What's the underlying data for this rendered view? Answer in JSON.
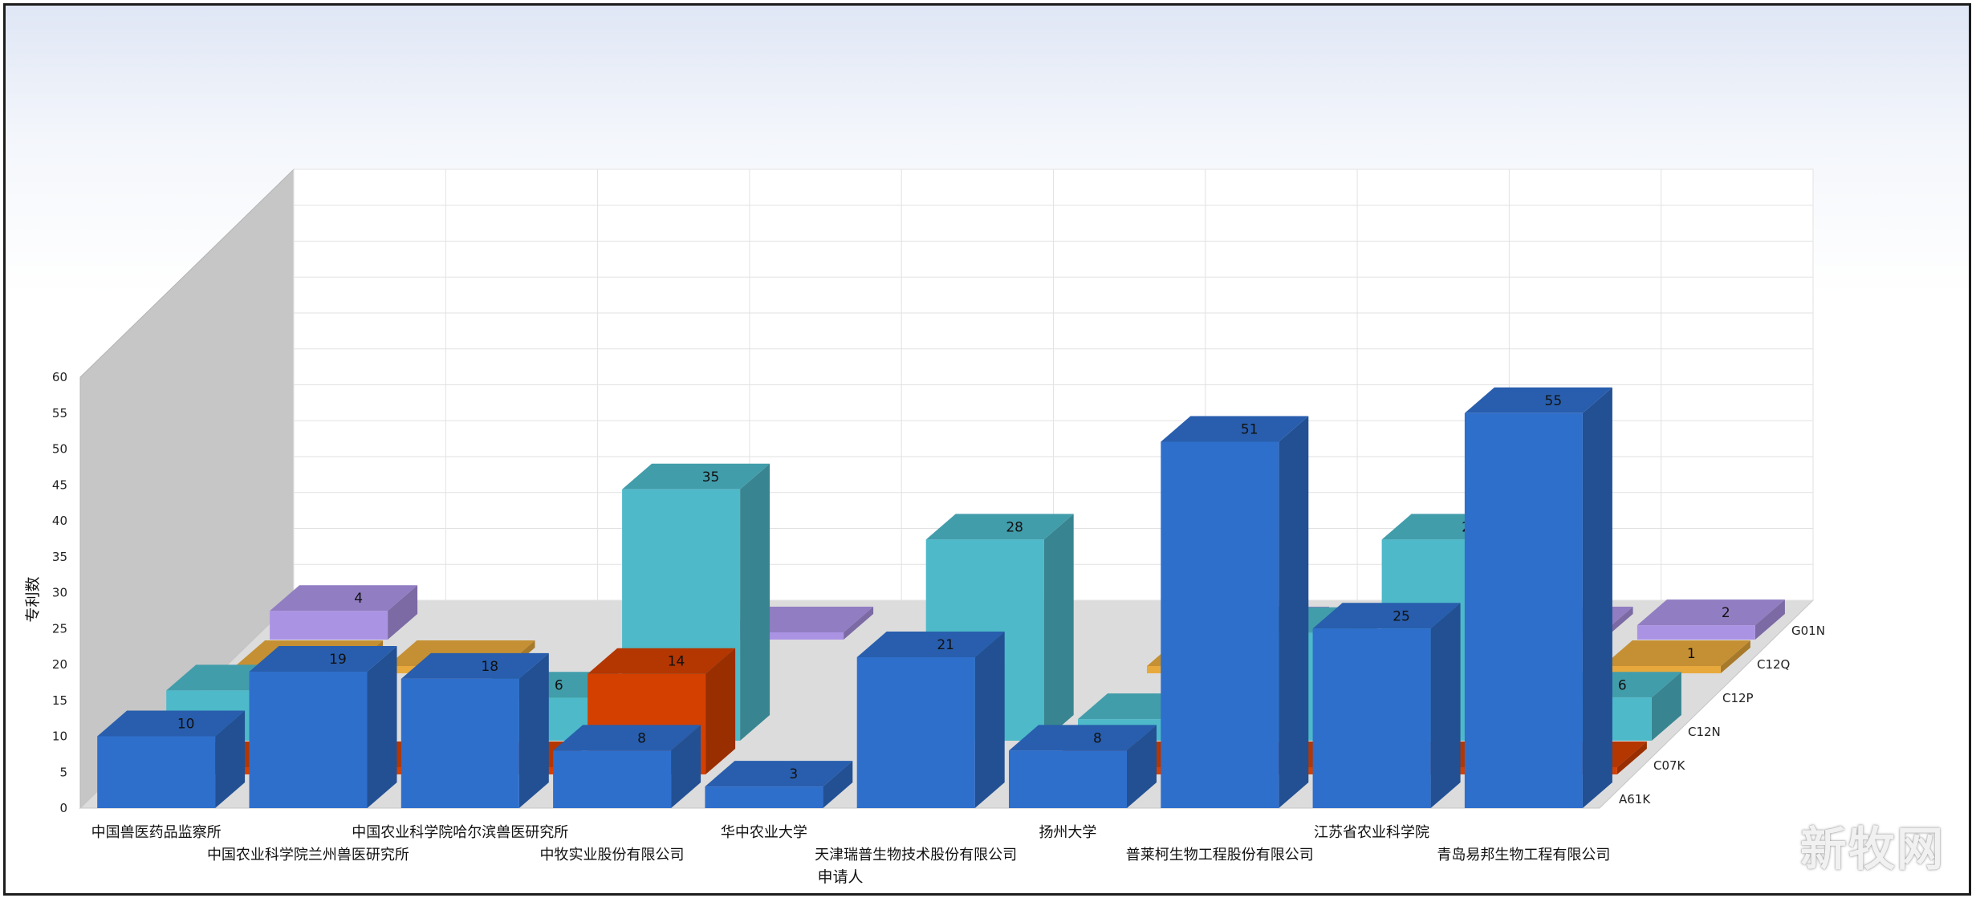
{
  "chart_data": {
    "type": "bar",
    "ylabel": "专利数",
    "xlabel": "申请人",
    "ylim": [
      0,
      60
    ],
    "yticks": [
      0,
      5,
      10,
      15,
      20,
      25,
      30,
      35,
      40,
      45,
      50,
      55,
      60
    ],
    "grid": true,
    "categories": [
      "中国兽医药品监察所",
      "中国农业科学院兰州兽医研究所",
      "中国农业科学院哈尔滨兽医研究所",
      "中牧实业股份有限公司",
      "华中农业大学",
      "天津瑞普生物技术股份有限公司",
      "扬州大学",
      "普莱柯生物工程股份有限公司",
      "江苏省农业科学院",
      "青岛易邦生物工程有限公司"
    ],
    "series": [
      {
        "name": "A61K",
        "color": "#2f6fcc",
        "values": [
          10,
          19,
          18,
          8,
          3,
          21,
          8,
          51,
          25,
          55
        ],
        "labels": [
          "10",
          "19",
          "18",
          "8",
          "3",
          "21",
          "8",
          "51",
          "25",
          "55"
        ]
      },
      {
        "name": "C07K",
        "color": "#d44000",
        "values": [
          1,
          1,
          1,
          14,
          0,
          0,
          1,
          1,
          1,
          1
        ],
        "labels": [
          "",
          "",
          "",
          "14",
          "",
          "",
          "",
          "",
          "",
          ""
        ]
      },
      {
        "name": "C12N",
        "color": "#4eb9c9",
        "values": [
          7,
          0,
          6,
          35,
          0,
          28,
          3,
          15,
          28,
          6
        ],
        "labels": [
          "7",
          "",
          "6",
          "35",
          "",
          "28",
          "3",
          "",
          "28",
          "6"
        ]
      },
      {
        "name": "C12P",
        "color": "#58b266",
        "values": [
          0,
          0,
          1,
          0,
          0,
          0,
          0,
          0,
          0,
          0
        ],
        "labels": [
          "",
          "",
          "",
          "",
          "",
          "",
          "",
          "",
          "",
          ""
        ]
      },
      {
        "name": "C12Q",
        "color": "#e8a93c",
        "values": [
          1,
          1,
          0,
          0,
          0,
          0,
          1,
          0,
          0,
          1
        ],
        "labels": [
          "1",
          "",
          "",
          "",
          "",
          "",
          "1",
          "",
          "",
          "1"
        ]
      },
      {
        "name": "G01N",
        "color": "#ab93e4",
        "values": [
          4,
          0,
          0,
          1,
          0,
          0,
          1,
          0,
          1,
          2
        ],
        "labels": [
          "4",
          "",
          "",
          "",
          "",
          "",
          "",
          "",
          "",
          "2"
        ]
      }
    ]
  },
  "watermark": "新牧网"
}
